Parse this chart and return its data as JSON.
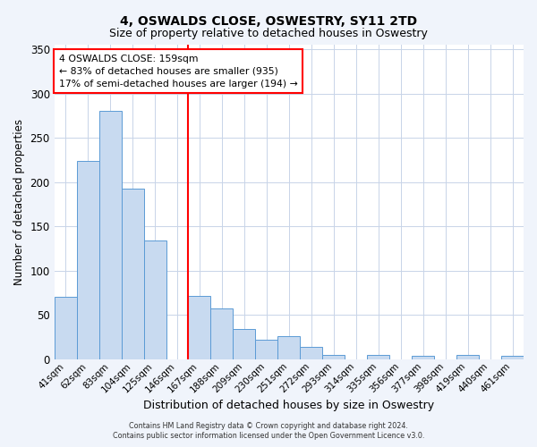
{
  "title": "4, OSWALDS CLOSE, OSWESTRY, SY11 2TD",
  "subtitle": "Size of property relative to detached houses in Oswestry",
  "xlabel": "Distribution of detached houses by size in Oswestry",
  "ylabel": "Number of detached properties",
  "bar_labels": [
    "41sqm",
    "62sqm",
    "83sqm",
    "104sqm",
    "125sqm",
    "146sqm",
    "167sqm",
    "188sqm",
    "209sqm",
    "230sqm",
    "251sqm",
    "272sqm",
    "293sqm",
    "314sqm",
    "335sqm",
    "356sqm",
    "377sqm",
    "398sqm",
    "419sqm",
    "440sqm",
    "461sqm"
  ],
  "bar_values": [
    70,
    224,
    280,
    193,
    134,
    0,
    71,
    57,
    34,
    22,
    26,
    14,
    5,
    0,
    5,
    0,
    4,
    0,
    5,
    0,
    4
  ],
  "bar_color": "#c8daf0",
  "bar_edge_color": "#5b9bd5",
  "vline_x_index": 6,
  "vline_color": "red",
  "annotation_title": "4 OSWALDS CLOSE: 159sqm",
  "annotation_line1": "← 83% of detached houses are smaller (935)",
  "annotation_line2": "17% of semi-detached houses are larger (194) →",
  "annotation_box_color": "white",
  "annotation_box_edge_color": "red",
  "ylim": [
    0,
    355
  ],
  "yticks": [
    0,
    50,
    100,
    150,
    200,
    250,
    300,
    350
  ],
  "footer_line1": "Contains HM Land Registry data © Crown copyright and database right 2024.",
  "footer_line2": "Contains public sector information licensed under the Open Government Licence v3.0.",
  "background_color": "#f0f4fb",
  "plot_bg_color": "#ffffff",
  "grid_color": "#c8d4e8"
}
